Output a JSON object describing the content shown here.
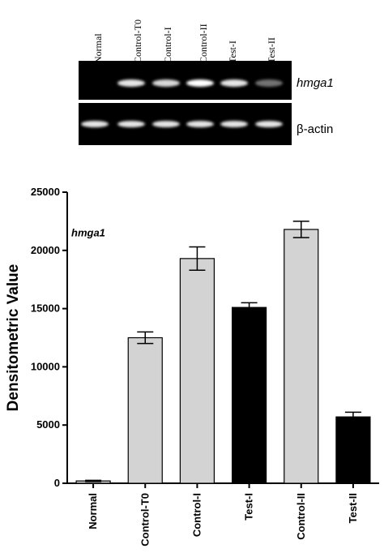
{
  "gel": {
    "lanes": [
      "Normal",
      "Control-T0",
      "Control-I",
      "Control-II",
      "Test-I",
      "Test-II"
    ],
    "gene_label": "hmga1",
    "control_label": "β-actin",
    "hmga1_band_intensity": [
      0,
      0.9,
      0.85,
      1.0,
      0.9,
      0.45
    ],
    "actin_band_intensity": [
      0.9,
      0.9,
      0.9,
      0.9,
      0.9,
      0.9
    ]
  },
  "chart_data": {
    "type": "bar",
    "categories": [
      "Normal",
      "Control-T0",
      "Control-I",
      "Test-I",
      "Control-II",
      "Test-II"
    ],
    "values": [
      200,
      12500,
      19300,
      15100,
      21800,
      5700
    ],
    "errors": [
      50,
      500,
      1000,
      400,
      700,
      400
    ],
    "bar_colors": [
      "#d3d3d3",
      "#d3d3d3",
      "#d3d3d3",
      "#000000",
      "#d3d3d3",
      "#000000"
    ],
    "title": "",
    "annotation": "hmga1",
    "xlabel": "",
    "ylabel": "Densitometric Value",
    "ylim": [
      0,
      25000
    ],
    "yticks": [
      0,
      5000,
      10000,
      15000,
      20000,
      25000
    ],
    "grid": false
  }
}
